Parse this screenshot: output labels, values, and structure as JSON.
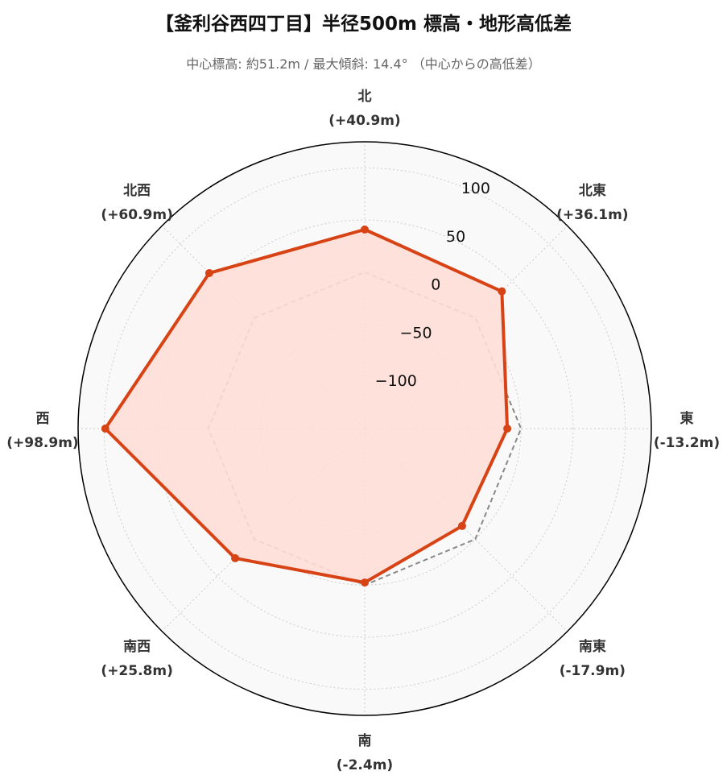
{
  "chart_data": {
    "type": "radar",
    "title": "【釜利谷西四丁目】半径500m 標高・地形高低差",
    "subtitle": "中心標高: 約51.2m / 最大傾斜: 14.4° （中心からの高低差）",
    "directions": [
      "北",
      "北東",
      "東",
      "南東",
      "南",
      "南西",
      "西",
      "北西"
    ],
    "direction_labels": [
      "(+40.9m)",
      "(+36.1m)",
      "(-13.2m)",
      "(-17.9m)",
      "(-2.4m)",
      "(+25.8m)",
      "(+98.9m)",
      "(+60.9m)"
    ],
    "values": [
      40.9,
      36.1,
      -13.2,
      -17.9,
      -2.4,
      25.8,
      98.9,
      60.9
    ],
    "reference_value": 0,
    "rlim": [
      -150,
      125
    ],
    "rticks": [
      -100,
      -50,
      0,
      50,
      100
    ],
    "rtick_labels": [
      "−100",
      "−50",
      "0",
      "50",
      "100"
    ],
    "grid": true,
    "colors": {
      "series_line": "#d84315",
      "series_fill": "#fdded6",
      "reference_line": "#888888",
      "grid": "#cccccc",
      "background": "#f9f9f9"
    }
  }
}
